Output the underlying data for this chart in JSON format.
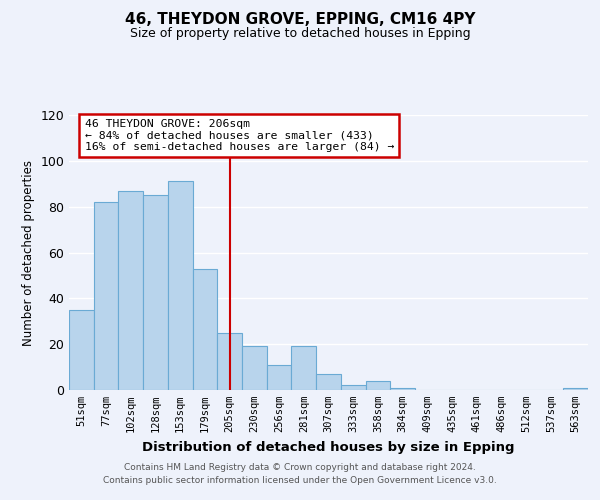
{
  "title": "46, THEYDON GROVE, EPPING, CM16 4PY",
  "subtitle": "Size of property relative to detached houses in Epping",
  "xlabel": "Distribution of detached houses by size in Epping",
  "ylabel": "Number of detached properties",
  "bar_color": "#b8d4ec",
  "bar_edge_color": "#6aaad4",
  "categories": [
    "51sqm",
    "77sqm",
    "102sqm",
    "128sqm",
    "153sqm",
    "179sqm",
    "205sqm",
    "230sqm",
    "256sqm",
    "281sqm",
    "307sqm",
    "333sqm",
    "358sqm",
    "384sqm",
    "409sqm",
    "435sqm",
    "461sqm",
    "486sqm",
    "512sqm",
    "537sqm",
    "563sqm"
  ],
  "values": [
    35,
    82,
    87,
    85,
    91,
    53,
    25,
    19,
    11,
    19,
    7,
    2,
    4,
    1,
    0,
    0,
    0,
    0,
    0,
    0,
    1
  ],
  "vline_index": 6,
  "vline_color": "#cc0000",
  "ylim": [
    0,
    120
  ],
  "yticks": [
    0,
    20,
    40,
    60,
    80,
    100,
    120
  ],
  "annotation_title": "46 THEYDON GROVE: 206sqm",
  "annotation_line1": "← 84% of detached houses are smaller (433)",
  "annotation_line2": "16% of semi-detached houses are larger (84) →",
  "annotation_box_color": "#ffffff",
  "annotation_box_edge": "#cc0000",
  "footer1": "Contains HM Land Registry data © Crown copyright and database right 2024.",
  "footer2": "Contains public sector information licensed under the Open Government Licence v3.0.",
  "background_color": "#eef2fb",
  "grid_color": "#ffffff"
}
